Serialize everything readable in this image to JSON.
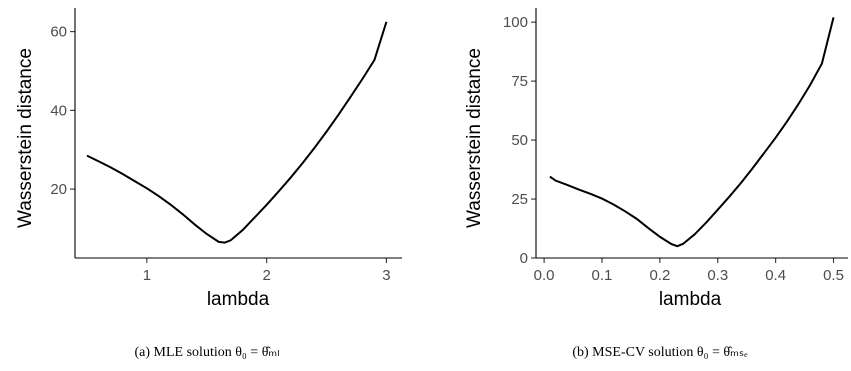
{
  "chart_data": [
    {
      "type": "line",
      "xlabel": "lambda",
      "ylabel": "Wasserstein distance",
      "xlim": [
        0.4,
        3.13
      ],
      "ylim": [
        2.5,
        66
      ],
      "xticks": [
        1,
        2,
        3
      ],
      "yticks": [
        20,
        40,
        60
      ],
      "grid": false,
      "caption": "(a) MLE solution θ₀ = θ̂ₘₗ",
      "x": [
        0.5,
        0.6,
        0.7,
        0.8,
        0.9,
        1.0,
        1.1,
        1.2,
        1.3,
        1.4,
        1.5,
        1.6,
        1.65,
        1.7,
        1.8,
        1.9,
        2.0,
        2.1,
        2.2,
        2.3,
        2.4,
        2.5,
        2.6,
        2.7,
        2.8,
        2.9,
        3.0
      ],
      "y": [
        28.5,
        27.0,
        25.5,
        23.8,
        22.0,
        20.2,
        18.2,
        16.0,
        13.6,
        11.0,
        8.6,
        6.6,
        6.4,
        7.0,
        9.6,
        12.8,
        16.0,
        19.4,
        22.9,
        26.6,
        30.5,
        34.6,
        38.9,
        43.4,
        48.0,
        52.8,
        62.5
      ]
    },
    {
      "type": "line",
      "xlabel": "lambda",
      "ylabel": "Wasserstein distance",
      "xlim": [
        -0.014,
        0.525
      ],
      "ylim": [
        0,
        106
      ],
      "xticks": [
        0.0,
        0.1,
        0.2,
        0.3,
        0.4,
        0.5
      ],
      "yticks": [
        0,
        25,
        50,
        75,
        100
      ],
      "grid": false,
      "caption": "(b) MSE-CV solution θ₀ = θ̂ₘₛₑ",
      "x": [
        0.01,
        0.02,
        0.04,
        0.06,
        0.08,
        0.1,
        0.12,
        0.14,
        0.16,
        0.18,
        0.2,
        0.22,
        0.23,
        0.24,
        0.26,
        0.28,
        0.3,
        0.32,
        0.34,
        0.36,
        0.38,
        0.4,
        0.42,
        0.44,
        0.46,
        0.48,
        0.5
      ],
      "y": [
        34.5,
        32.8,
        31.0,
        29.0,
        27.2,
        25.2,
        22.7,
        19.8,
        16.6,
        12.7,
        9.0,
        5.9,
        5.0,
        6.0,
        10.0,
        15.0,
        20.5,
        26.0,
        31.8,
        38.0,
        44.5,
        51.0,
        58.0,
        65.5,
        73.5,
        82.5,
        102.0
      ]
    }
  ]
}
